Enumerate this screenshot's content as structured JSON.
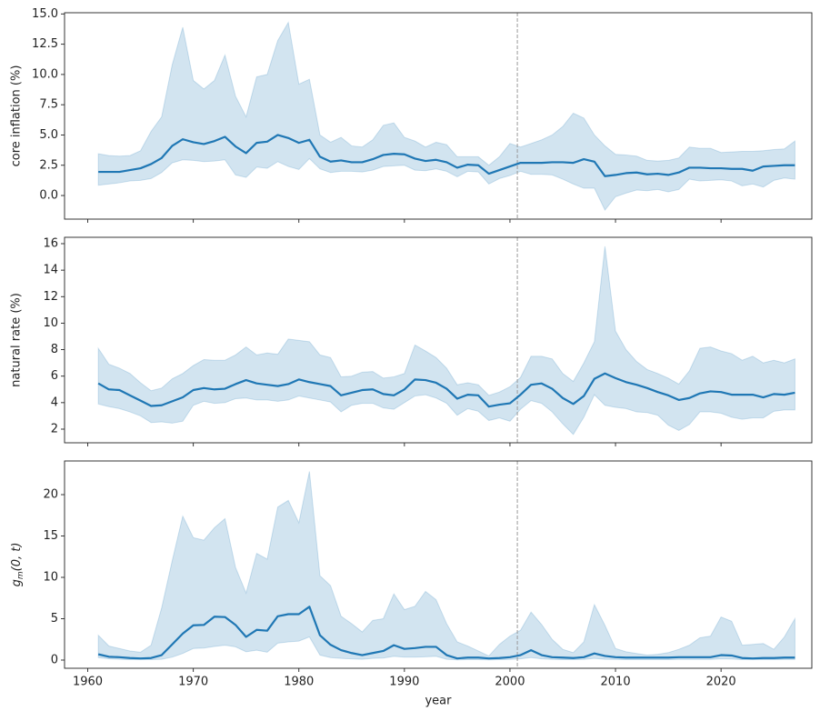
{
  "chart_data": [
    {
      "type": "band-line",
      "ylabel": "core inflation (%)",
      "color": "#1f77b4",
      "xlim": [
        1957.8,
        2028.6
      ],
      "xticks": [
        1960,
        1970,
        1980,
        1990,
        2000,
        2010,
        2020
      ],
      "show_xtick_labels": false,
      "ylim": [
        -1.95,
        15.1
      ],
      "yticks": [
        {
          "value": 0,
          "label": "0.0"
        },
        {
          "value": 2.5,
          "label": "2.5"
        },
        {
          "value": 5,
          "label": "5.0"
        },
        {
          "value": 7.5,
          "label": "7.5"
        },
        {
          "value": 10,
          "label": "10.0"
        },
        {
          "value": 12.5,
          "label": "12.5"
        },
        {
          "value": 15,
          "label": "15.0"
        }
      ],
      "vline": 2000.7,
      "x": [
        1961,
        1962,
        1963,
        1964,
        1965,
        1966,
        1967,
        1968,
        1969,
        1970,
        1971,
        1972,
        1973,
        1974,
        1975,
        1976,
        1977,
        1978,
        1979,
        1980,
        1981,
        1982,
        1983,
        1984,
        1985,
        1986,
        1987,
        1988,
        1989,
        1990,
        1991,
        1992,
        1993,
        1994,
        1995,
        1996,
        1997,
        1998,
        1999,
        2000,
        2001,
        2002,
        2003,
        2004,
        2005,
        2006,
        2007,
        2008,
        2009,
        2010,
        2011,
        2012,
        2013,
        2014,
        2015,
        2016,
        2017,
        2018,
        2019,
        2020,
        2021,
        2022,
        2023,
        2024,
        2025,
        2026,
        2027
      ],
      "values": [
        1.95,
        1.95,
        1.95,
        2.1,
        2.25,
        2.6,
        3.1,
        4.1,
        4.65,
        4.4,
        4.25,
        4.5,
        4.85,
        4.05,
        3.5,
        4.35,
        4.45,
        5.0,
        4.75,
        4.35,
        4.6,
        3.2,
        2.8,
        2.9,
        2.75,
        2.75,
        3.0,
        3.35,
        3.45,
        3.4,
        3.05,
        2.85,
        2.95,
        2.75,
        2.3,
        2.55,
        2.5,
        1.8,
        2.1,
        2.4,
        2.7,
        2.7,
        2.7,
        2.75,
        2.75,
        2.7,
        3.0,
        2.8,
        1.6,
        1.7,
        1.85,
        1.9,
        1.75,
        1.8,
        1.7,
        1.9,
        2.3,
        2.3,
        2.25,
        2.25,
        2.2,
        2.2,
        2.05,
        2.4,
        2.45,
        2.5,
        2.5
      ],
      "upper": [
        3.45,
        3.3,
        3.25,
        3.3,
        3.7,
        5.3,
        6.5,
        10.8,
        13.9,
        9.5,
        8.8,
        9.5,
        11.6,
        8.2,
        6.5,
        9.8,
        10.0,
        12.8,
        14.3,
        9.2,
        9.6,
        5.0,
        4.4,
        4.8,
        4.1,
        4.0,
        4.6,
        5.8,
        6.0,
        4.8,
        4.5,
        4.0,
        4.4,
        4.2,
        3.2,
        3.2,
        3.2,
        2.5,
        3.2,
        4.3,
        4.0,
        4.3,
        4.6,
        5.0,
        5.7,
        6.8,
        6.4,
        5.0,
        4.1,
        3.4,
        3.35,
        3.25,
        2.9,
        2.85,
        2.9,
        3.1,
        4.0,
        3.9,
        3.9,
        3.55,
        3.6,
        3.65,
        3.65,
        3.7,
        3.8,
        3.85,
        4.5
      ],
      "lower": [
        0.85,
        0.95,
        1.05,
        1.2,
        1.25,
        1.4,
        1.9,
        2.7,
        2.95,
        2.9,
        2.8,
        2.85,
        2.95,
        1.7,
        1.5,
        2.35,
        2.25,
        2.8,
        2.4,
        2.15,
        3.05,
        2.2,
        1.9,
        2.0,
        2.0,
        1.95,
        2.1,
        2.4,
        2.45,
        2.5,
        2.1,
        2.05,
        2.2,
        2.0,
        1.55,
        2.0,
        1.95,
        0.95,
        1.4,
        1.65,
        2.0,
        1.75,
        1.75,
        1.7,
        1.35,
        0.95,
        0.6,
        0.6,
        -1.2,
        -0.1,
        0.2,
        0.45,
        0.4,
        0.5,
        0.3,
        0.5,
        1.35,
        1.2,
        1.25,
        1.3,
        1.2,
        0.8,
        0.95,
        0.7,
        1.25,
        1.45,
        1.35
      ]
    },
    {
      "type": "band-line",
      "ylabel": "natural rate (%)",
      "color": "#1f77b4",
      "xlim": [
        1957.8,
        2028.6
      ],
      "xticks": [
        1960,
        1970,
        1980,
        1990,
        2000,
        2010,
        2020
      ],
      "show_xtick_labels": false,
      "ylim": [
        0.97,
        16.48
      ],
      "yticks": [
        2,
        4,
        6,
        8,
        10,
        12,
        14,
        16
      ],
      "vline": 2000.7,
      "x": [
        1961,
        1962,
        1963,
        1964,
        1965,
        1966,
        1967,
        1968,
        1969,
        1970,
        1971,
        1972,
        1973,
        1974,
        1975,
        1976,
        1977,
        1978,
        1979,
        1980,
        1981,
        1982,
        1983,
        1984,
        1985,
        1986,
        1987,
        1988,
        1989,
        1990,
        1991,
        1992,
        1993,
        1994,
        1995,
        1996,
        1997,
        1998,
        1999,
        2000,
        2001,
        2002,
        2003,
        2004,
        2005,
        2006,
        2007,
        2008,
        2009,
        2010,
        2011,
        2012,
        2013,
        2014,
        2015,
        2016,
        2017,
        2018,
        2019,
        2020,
        2021,
        2022,
        2023,
        2024,
        2025,
        2026,
        2027
      ],
      "values": [
        5.45,
        5.0,
        4.95,
        4.55,
        4.15,
        3.75,
        3.8,
        4.1,
        4.4,
        4.95,
        5.1,
        5.0,
        5.05,
        5.4,
        5.7,
        5.45,
        5.35,
        5.25,
        5.4,
        5.75,
        5.55,
        5.4,
        5.25,
        4.55,
        4.75,
        4.95,
        5.0,
        4.65,
        4.55,
        5.0,
        5.75,
        5.7,
        5.5,
        5.05,
        4.3,
        4.6,
        4.55,
        3.7,
        3.85,
        3.95,
        4.6,
        5.35,
        5.45,
        5.05,
        4.35,
        3.9,
        4.5,
        5.8,
        6.2,
        5.85,
        5.55,
        5.35,
        5.1,
        4.8,
        4.55,
        4.2,
        4.35,
        4.7,
        4.85,
        4.8,
        4.6,
        4.6,
        4.6,
        4.4,
        4.65,
        4.6,
        4.75
      ],
      "upper": [
        8.1,
        6.9,
        6.6,
        6.2,
        5.5,
        4.9,
        5.1,
        5.8,
        6.2,
        6.8,
        7.25,
        7.2,
        7.2,
        7.6,
        8.2,
        7.6,
        7.75,
        7.65,
        8.8,
        8.7,
        8.6,
        7.6,
        7.4,
        5.95,
        6.0,
        6.3,
        6.35,
        5.85,
        5.95,
        6.2,
        8.35,
        7.9,
        7.4,
        6.6,
        5.35,
        5.5,
        5.35,
        4.55,
        4.8,
        5.2,
        5.9,
        7.5,
        7.5,
        7.3,
        6.2,
        5.6,
        7.0,
        8.6,
        15.8,
        9.4,
        8.0,
        7.1,
        6.5,
        6.2,
        5.85,
        5.4,
        6.4,
        8.1,
        8.2,
        7.9,
        7.7,
        7.2,
        7.5,
        7.0,
        7.2,
        7.0,
        7.3
      ],
      "lower": [
        3.9,
        3.7,
        3.55,
        3.3,
        3.0,
        2.5,
        2.55,
        2.45,
        2.6,
        3.8,
        4.1,
        3.95,
        4.0,
        4.3,
        4.35,
        4.2,
        4.2,
        4.1,
        4.2,
        4.5,
        4.35,
        4.2,
        4.05,
        3.3,
        3.8,
        3.95,
        3.95,
        3.6,
        3.5,
        4.0,
        4.5,
        4.6,
        4.35,
        3.95,
        3.05,
        3.55,
        3.35,
        2.65,
        2.85,
        2.6,
        3.5,
        4.15,
        3.95,
        3.3,
        2.4,
        1.6,
        2.9,
        4.6,
        3.8,
        3.65,
        3.55,
        3.3,
        3.25,
        3.05,
        2.3,
        1.9,
        2.35,
        3.3,
        3.3,
        3.2,
        2.9,
        2.75,
        2.85,
        2.85,
        3.35,
        3.45,
        3.45
      ]
    },
    {
      "type": "band-line",
      "ylabel": [
        "g",
        "m",
        "(0, t)"
      ],
      "xlabel": "year",
      "color": "#1f77b4",
      "xlim": [
        1957.8,
        2028.6
      ],
      "xticks": [
        1960,
        1970,
        1980,
        1990,
        2000,
        2010,
        2020
      ],
      "show_xtick_labels": true,
      "ylim": [
        -0.99,
        24.07
      ],
      "yticks": [
        0,
        5,
        10,
        15,
        20
      ],
      "vline": 2000.7,
      "x": [
        1961,
        1962,
        1963,
        1964,
        1965,
        1966,
        1967,
        1968,
        1969,
        1970,
        1971,
        1972,
        1973,
        1974,
        1975,
        1976,
        1977,
        1978,
        1979,
        1980,
        1981,
        1982,
        1983,
        1984,
        1985,
        1986,
        1987,
        1988,
        1989,
        1990,
        1991,
        1992,
        1993,
        1994,
        1995,
        1996,
        1997,
        1998,
        1999,
        2000,
        2001,
        2002,
        2003,
        2004,
        2005,
        2006,
        2007,
        2008,
        2009,
        2010,
        2011,
        2012,
        2013,
        2014,
        2015,
        2016,
        2017,
        2018,
        2019,
        2020,
        2021,
        2022,
        2023,
        2024,
        2025,
        2026,
        2027
      ],
      "values": [
        0.7,
        0.4,
        0.35,
        0.25,
        0.2,
        0.25,
        0.6,
        1.9,
        3.2,
        4.2,
        4.25,
        5.25,
        5.2,
        4.25,
        2.8,
        3.65,
        3.55,
        5.3,
        5.55,
        5.55,
        6.45,
        3.0,
        1.85,
        1.2,
        0.85,
        0.6,
        0.85,
        1.1,
        1.8,
        1.35,
        1.45,
        1.6,
        1.6,
        0.6,
        0.2,
        0.3,
        0.3,
        0.2,
        0.25,
        0.35,
        0.6,
        1.2,
        0.6,
        0.35,
        0.3,
        0.25,
        0.35,
        0.8,
        0.5,
        0.35,
        0.3,
        0.3,
        0.3,
        0.3,
        0.3,
        0.35,
        0.35,
        0.35,
        0.35,
        0.6,
        0.55,
        0.25,
        0.2,
        0.25,
        0.25,
        0.3,
        0.3
      ],
      "upper": [
        3.0,
        1.7,
        1.4,
        1.1,
        0.95,
        1.8,
        6.3,
        12.0,
        17.4,
        14.8,
        14.5,
        16.0,
        17.1,
        11.2,
        8.1,
        12.9,
        12.2,
        18.5,
        19.3,
        16.6,
        22.8,
        10.2,
        9.0,
        5.3,
        4.4,
        3.4,
        4.8,
        5.0,
        8.0,
        6.1,
        6.5,
        8.3,
        7.3,
        4.4,
        2.2,
        1.7,
        1.1,
        0.5,
        1.9,
        2.9,
        3.6,
        5.8,
        4.3,
        2.5,
        1.3,
        0.9,
        2.2,
        6.7,
        4.2,
        1.4,
        1.0,
        0.8,
        0.6,
        0.7,
        0.9,
        1.3,
        1.8,
        2.7,
        2.9,
        5.2,
        4.7,
        1.8,
        1.9,
        2.0,
        1.3,
        2.8,
        5.0
      ],
      "lower": [
        0.3,
        0.15,
        0.1,
        0.05,
        0.05,
        0.05,
        0.1,
        0.35,
        0.8,
        1.4,
        1.45,
        1.65,
        1.8,
        1.6,
        1.0,
        1.2,
        0.95,
        2.05,
        2.2,
        2.3,
        2.8,
        0.6,
        0.3,
        0.2,
        0.15,
        0.1,
        0.2,
        0.25,
        0.45,
        0.35,
        0.35,
        0.4,
        0.45,
        0.1,
        0.03,
        0.05,
        0.05,
        0.03,
        0.05,
        0.08,
        0.15,
        0.3,
        0.15,
        0.08,
        0.05,
        0.05,
        0.08,
        0.2,
        0.1,
        0.08,
        0.05,
        0.05,
        0.05,
        0.05,
        0.05,
        0.08,
        0.08,
        0.08,
        0.08,
        0.15,
        0.12,
        0.05,
        0.05,
        0.05,
        0.05,
        0.08,
        0.08
      ]
    }
  ]
}
